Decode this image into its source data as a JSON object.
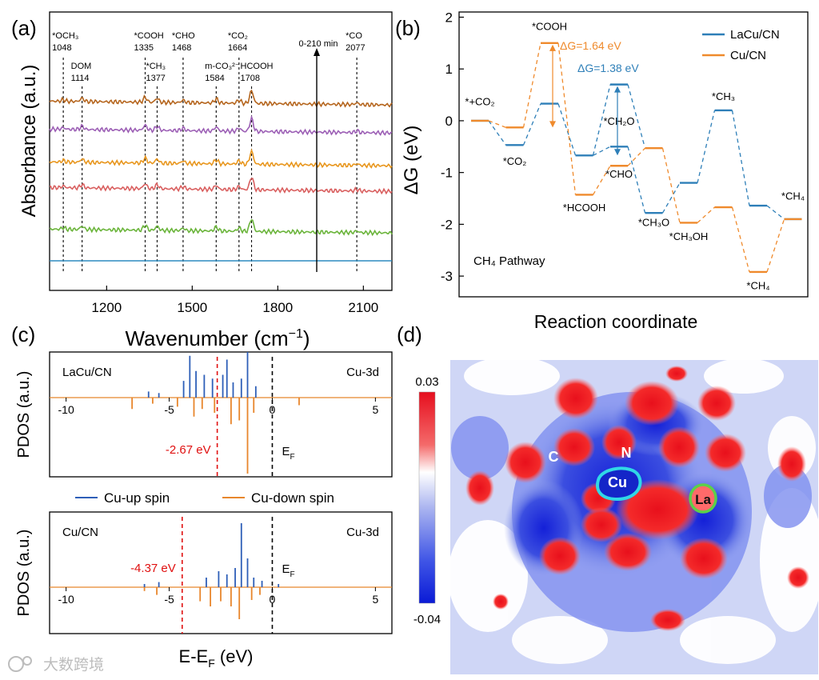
{
  "watermark": "大数跨境",
  "chart_data": [
    {
      "panel": "(a)",
      "type": "line",
      "ylabel": "Absorbance (a.u.)",
      "xlabel": "Wavenumber (cm",
      "xlabel_sup": "−1",
      "xlabel_end": ")",
      "xlim": [
        1000,
        2200
      ],
      "xticks": [
        1200,
        1500,
        1800,
        2100
      ],
      "arrow_label": "0-210 min",
      "arrow_x": 1920,
      "series_colors": [
        "#2e8bc0",
        "#6ab43a",
        "#d95f5f",
        "#e8961d",
        "#9c5fb5",
        "#b5651d"
      ],
      "peak_centers": [
        1048,
        1114,
        1335,
        1377,
        1468,
        1584,
        1664,
        1708,
        2077
      ],
      "peaks": [
        {
          "pos": 1048,
          "name": "*OCH₃",
          "wn": "1048"
        },
        {
          "pos": 1114,
          "name": "DOM",
          "wn": "1114"
        },
        {
          "pos": 1335,
          "name": "*COOH",
          "wn": "1335"
        },
        {
          "pos": 1377,
          "name": "*CH₃",
          "wn": "1377"
        },
        {
          "pos": 1468,
          "name": "*CHO",
          "wn": "1468"
        },
        {
          "pos": 1584,
          "name": "m-CO₃²⁻",
          "wn": "1584"
        },
        {
          "pos": 1664,
          "name": "*CO₂",
          "wn": "1664"
        },
        {
          "pos": 1708,
          "name": "HCOOH",
          "wn": "1708"
        },
        {
          "pos": 2077,
          "name": "*CO",
          "wn": "2077"
        }
      ]
    },
    {
      "panel": "(b)",
      "type": "line",
      "ylabel": "ΔG (eV)",
      "xlabel": "Reaction coordinate",
      "ylim": [
        -3.4,
        2.1
      ],
      "yticks": [
        2,
        1,
        0,
        -1,
        -2,
        -3
      ],
      "annotation": "CH₄ Pathway",
      "series": [
        {
          "name": "LaCu/CN",
          "color": "#2e7fb8",
          "values": [
            0,
            -0.47,
            0.33,
            -0.67,
            -0.5,
            -1.78,
            -1.2,
            0.2,
            -1.64,
            -1.9
          ]
        },
        {
          "name": "Cu/CN",
          "color": "#ef8a2c",
          "values": [
            0,
            -0.13,
            1.5,
            -1.43,
            -0.87,
            -0.53,
            -1.97,
            -1.67,
            -2.92,
            -1.9
          ]
        }
      ],
      "state_labels": [
        {
          "text": "*+CO₂",
          "state": 0,
          "value": 0.3
        },
        {
          "text": "*CO₂",
          "state": 1,
          "value": -0.85
        },
        {
          "text": "*COOH",
          "state": 2,
          "value": 1.75
        },
        {
          "text": "*HCOOH",
          "state": 3,
          "value": -1.75
        },
        {
          "text": "*CHO",
          "state": 4,
          "value": -1.1
        },
        {
          "text": "*CH₂O",
          "state": 4,
          "value": -0.08
        },
        {
          "text": "*CH₃O",
          "state": 5,
          "value": -2.03
        },
        {
          "text": "*CH₃OH",
          "state": 6,
          "value": -2.3
        },
        {
          "text": "*CH₃",
          "state": 7,
          "value": 0.4
        },
        {
          "text": "*CH₄",
          "state": 8,
          "value": -3.25
        },
        {
          "text": "*CH₄",
          "state": 9,
          "value": -1.52
        }
      ],
      "dg_annotations": [
        {
          "text": "ΔG=1.64 eV",
          "color": "#ef8a2c",
          "series": "Cu/CN"
        },
        {
          "text": "ΔG=1.38 eV",
          "color": "#2e7fb8",
          "series": "LaCu/CN"
        }
      ]
    },
    {
      "panel": "(c)",
      "type": "line",
      "ylabel": "PDOS (a.u.)",
      "xlabel": "E-E",
      "xlabel_sub": "F",
      "xlabel_end": " (eV)",
      "xlim": [
        -10.8,
        5.8
      ],
      "xticks": [
        -10,
        -5,
        0,
        5
      ],
      "orbital": "Cu-3d",
      "fermi_label": "E",
      "fermi_sub": "F",
      "legend": [
        {
          "name": "Cu-up spin",
          "color": "#2e5fb8"
        },
        {
          "name": "Cu-down spin",
          "color": "#e8862c"
        }
      ],
      "subplots": [
        {
          "name": "LaCu/CN",
          "d_band_center": -2.67,
          "d_band_label": "-2.67 eV",
          "up_peaks": [
            [
              -4.3,
              0.22
            ],
            [
              -4.0,
              0.55
            ],
            [
              -3.7,
              0.35
            ],
            [
              -3.3,
              0.3
            ],
            [
              -2.9,
              0.25
            ],
            [
              -2.4,
              0.3
            ],
            [
              -2.2,
              0.5
            ],
            [
              -1.9,
              0.2
            ],
            [
              -1.5,
              0.25
            ],
            [
              -1.2,
              0.6
            ],
            [
              -0.8,
              0.15
            ],
            [
              -6.0,
              0.08
            ],
            [
              -5.5,
              0.06
            ]
          ],
          "down_peaks": [
            [
              -6.8,
              -0.15
            ],
            [
              -5.8,
              -0.08
            ],
            [
              -4.6,
              -0.12
            ],
            [
              -3.8,
              -0.25
            ],
            [
              -3.4,
              -0.15
            ],
            [
              -2.8,
              -0.2
            ],
            [
              -2.0,
              -0.35
            ],
            [
              -1.6,
              -0.3
            ],
            [
              -1.2,
              -1.0
            ],
            [
              -0.9,
              -0.2
            ],
            [
              1.3,
              -0.1
            ]
          ]
        },
        {
          "name": "Cu/CN",
          "d_band_center": -4.37,
          "d_band_label": "-4.37 eV",
          "up_peaks": [
            [
              -6.2,
              0.05
            ],
            [
              -5.5,
              0.08
            ],
            [
              -3.2,
              0.15
            ],
            [
              -2.6,
              0.25
            ],
            [
              -2.2,
              0.2
            ],
            [
              -1.8,
              0.3
            ],
            [
              -1.5,
              1.0
            ],
            [
              -1.2,
              0.45
            ],
            [
              -0.9,
              0.15
            ],
            [
              -0.5,
              0.1
            ],
            [
              0.3,
              0.05
            ]
          ],
          "down_peaks": [
            [
              -6.2,
              -0.06
            ],
            [
              -5.6,
              -0.12
            ],
            [
              -3.5,
              -0.22
            ],
            [
              -3.0,
              -0.3
            ],
            [
              -2.5,
              -0.22
            ],
            [
              -2.0,
              -0.3
            ],
            [
              -1.6,
              -0.5
            ],
            [
              -1.0,
              -0.2
            ],
            [
              -0.6,
              -0.12
            ]
          ]
        }
      ]
    },
    {
      "panel": "(d)",
      "type": "heatmap",
      "colorbar_max": "0.03",
      "colorbar_min": "-0.04",
      "atom_labels": [
        "C",
        "N",
        "Cu",
        "La"
      ]
    }
  ]
}
